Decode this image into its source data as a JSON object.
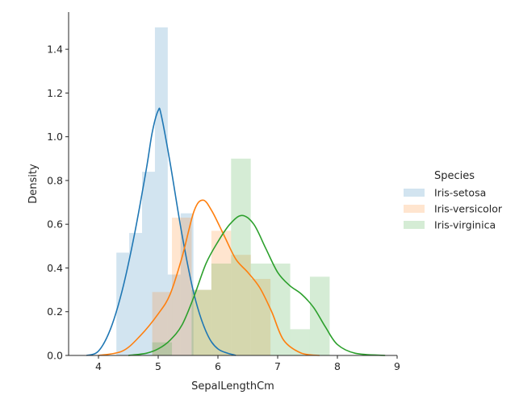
{
  "chart_data": {
    "type": "histogram+kde",
    "xlabel": "SepalLengthCm",
    "ylabel": "Density",
    "xlim": [
      3.5,
      9.0
    ],
    "ylim": [
      0.0,
      1.57
    ],
    "xticks": [
      4,
      5,
      6,
      7,
      8,
      9
    ],
    "yticks": [
      0.0,
      0.2,
      0.4,
      0.6,
      0.8,
      1.0,
      1.2,
      1.4
    ],
    "grid": false,
    "legend": {
      "title": "Species",
      "placement": "right"
    },
    "series": [
      {
        "name": "Iris-setosa",
        "color": "#1f77b4",
        "histogram": {
          "bins": [
            [
              4.3,
              4.515,
              0.47
            ],
            [
              4.515,
              4.73,
              0.56
            ],
            [
              4.73,
              4.945,
              0.84
            ],
            [
              4.945,
              5.16,
              1.5
            ],
            [
              5.16,
              5.375,
              0.37
            ],
            [
              5.375,
              5.59,
              0.65
            ]
          ]
        },
        "kde": [
          [
            3.8,
            0.0
          ],
          [
            4.0,
            0.02
          ],
          [
            4.2,
            0.12
          ],
          [
            4.4,
            0.3
          ],
          [
            4.6,
            0.55
          ],
          [
            4.8,
            0.85
          ],
          [
            4.9,
            1.02
          ],
          [
            5.0,
            1.12
          ],
          [
            5.05,
            1.1
          ],
          [
            5.2,
            0.88
          ],
          [
            5.4,
            0.55
          ],
          [
            5.6,
            0.28
          ],
          [
            5.8,
            0.11
          ],
          [
            6.0,
            0.03
          ],
          [
            6.3,
            0.0
          ]
        ]
      },
      {
        "name": "Iris-versicolor",
        "color": "#ff7f0e",
        "histogram": {
          "bins": [
            [
              4.9,
              5.23,
              0.29
            ],
            [
              5.23,
              5.56,
              0.63
            ],
            [
              5.56,
              5.89,
              0.3
            ],
            [
              5.89,
              6.22,
              0.57
            ],
            [
              6.22,
              6.55,
              0.46
            ],
            [
              6.55,
              6.88,
              0.35
            ]
          ]
        },
        "kde": [
          [
            4.0,
            0.0
          ],
          [
            4.4,
            0.02
          ],
          [
            4.7,
            0.09
          ],
          [
            5.0,
            0.19
          ],
          [
            5.2,
            0.28
          ],
          [
            5.4,
            0.45
          ],
          [
            5.6,
            0.66
          ],
          [
            5.75,
            0.71
          ],
          [
            5.9,
            0.66
          ],
          [
            6.1,
            0.55
          ],
          [
            6.3,
            0.44
          ],
          [
            6.5,
            0.38
          ],
          [
            6.7,
            0.31
          ],
          [
            6.9,
            0.2
          ],
          [
            7.1,
            0.07
          ],
          [
            7.4,
            0.01
          ],
          [
            7.7,
            0.0
          ]
        ]
      },
      {
        "name": "Iris-virginica",
        "color": "#2ca02c",
        "histogram": {
          "bins": [
            [
              4.9,
              5.23,
              0.06
            ],
            [
              5.23,
              5.56,
              0.0
            ],
            [
              5.56,
              5.89,
              0.3
            ],
            [
              5.89,
              6.22,
              0.42
            ],
            [
              6.22,
              6.55,
              0.9
            ],
            [
              6.55,
              6.88,
              0.42
            ],
            [
              6.88,
              7.21,
              0.42
            ],
            [
              7.21,
              7.54,
              0.12
            ],
            [
              7.54,
              7.87,
              0.36
            ]
          ]
        },
        "kde": [
          [
            4.5,
            0.0
          ],
          [
            4.8,
            0.01
          ],
          [
            5.0,
            0.03
          ],
          [
            5.2,
            0.07
          ],
          [
            5.4,
            0.14
          ],
          [
            5.6,
            0.27
          ],
          [
            5.8,
            0.42
          ],
          [
            6.0,
            0.52
          ],
          [
            6.2,
            0.6
          ],
          [
            6.4,
            0.64
          ],
          [
            6.6,
            0.6
          ],
          [
            6.8,
            0.49
          ],
          [
            7.0,
            0.38
          ],
          [
            7.2,
            0.32
          ],
          [
            7.4,
            0.28
          ],
          [
            7.6,
            0.22
          ],
          [
            7.8,
            0.13
          ],
          [
            8.0,
            0.05
          ],
          [
            8.3,
            0.01
          ],
          [
            8.8,
            0.0
          ]
        ]
      }
    ]
  }
}
